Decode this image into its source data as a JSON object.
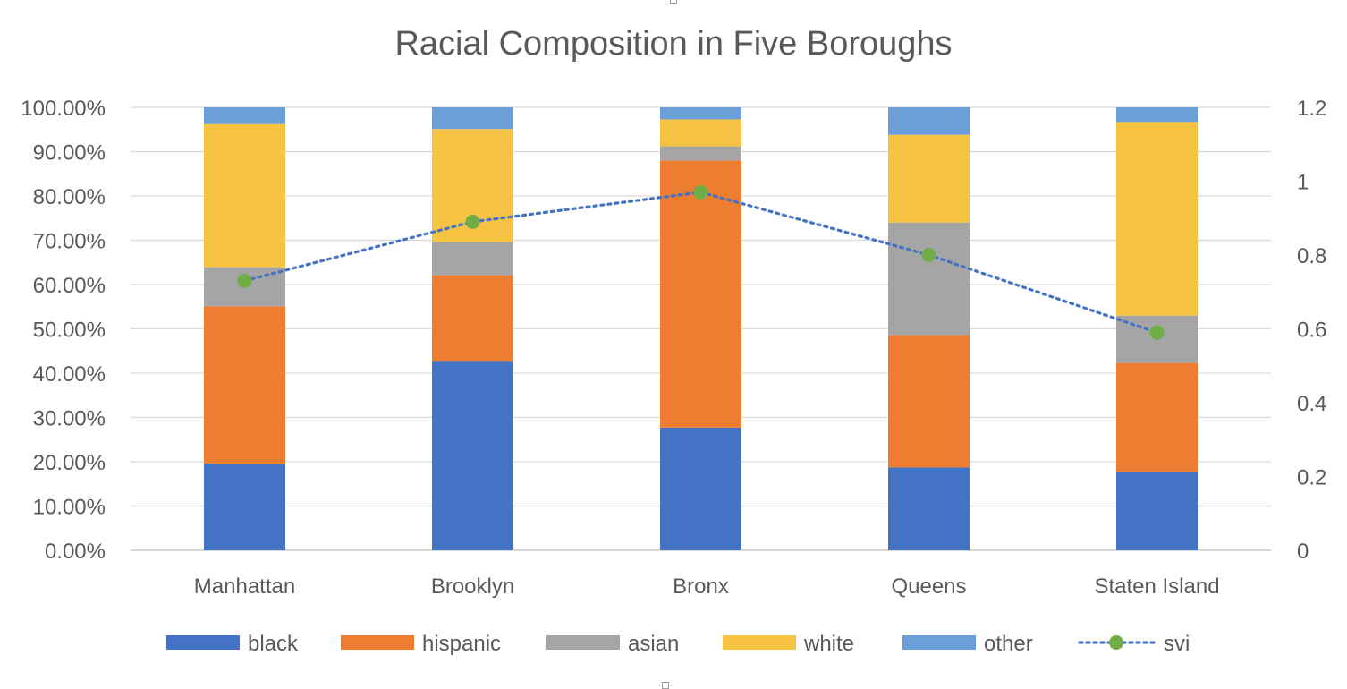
{
  "chart_data": {
    "type": "bar",
    "stacked": true,
    "title": "Racial Composition in Five Boroughs",
    "categories": [
      "Manhattan",
      "Brooklyn",
      "Bronx",
      "Queens",
      "Staten Island"
    ],
    "series": [
      {
        "name": "black",
        "color": "#4472C4",
        "values": [
          0.196,
          0.428,
          0.277,
          0.187,
          0.176
        ]
      },
      {
        "name": "hispanic",
        "color": "#ED7D31",
        "values": [
          0.355,
          0.193,
          0.603,
          0.299,
          0.247
        ]
      },
      {
        "name": "asian",
        "color": "#A5A5A5",
        "values": [
          0.088,
          0.075,
          0.032,
          0.254,
          0.107
        ]
      },
      {
        "name": "white",
        "color": "#F5C242",
        "values": [
          0.323,
          0.255,
          0.061,
          0.198,
          0.437
        ]
      },
      {
        "name": "other",
        "color": "#6A9FD8",
        "values": [
          0.038,
          0.049,
          0.027,
          0.062,
          0.033
        ]
      }
    ],
    "line_series": {
      "name": "svi",
      "color": "#4472C4",
      "marker_color": "#70AD47",
      "axis": "secondary",
      "values": [
        0.73,
        0.89,
        0.97,
        0.8,
        0.59
      ]
    },
    "y_axis": {
      "min": 0,
      "max": 1.0,
      "ticks": [
        "0.00%",
        "10.00%",
        "20.00%",
        "30.00%",
        "40.00%",
        "50.00%",
        "60.00%",
        "70.00%",
        "80.00%",
        "90.00%",
        "100.00%"
      ]
    },
    "y2_axis": {
      "min": 0,
      "max": 1.2,
      "ticks": [
        "0",
        "0.2",
        "0.4",
        "0.6",
        "0.8",
        "1",
        "1.2"
      ]
    },
    "grid": true,
    "legend": "bottom",
    "legend_entries": [
      "black",
      "hispanic",
      "asian",
      "white",
      "other",
      "svi"
    ]
  }
}
